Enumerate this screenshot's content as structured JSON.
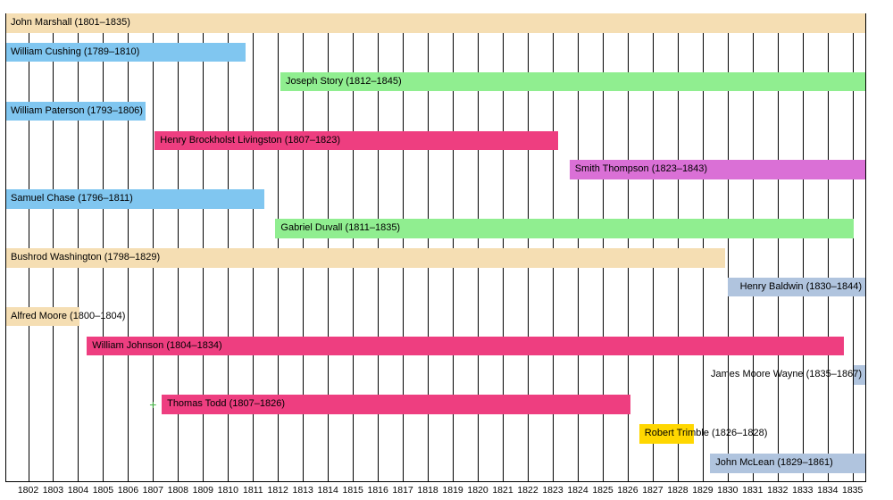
{
  "chart_data": {
    "type": "bar",
    "subtype": "horizontal-timeline-gantt",
    "title": "",
    "xlabel": "",
    "ylabel": "",
    "grid": true,
    "legend": false,
    "x_axis": {
      "visible_min": 1801.09,
      "visible_max": 1835.51,
      "tick_labels": [
        "1802",
        "1803",
        "1804",
        "1805",
        "1806",
        "1807",
        "1808",
        "1809",
        "1810",
        "1811",
        "1812",
        "1813",
        "1814",
        "1815",
        "1816",
        "1817",
        "1818",
        "1819",
        "1820",
        "1821",
        "1822",
        "1823",
        "1824",
        "1825",
        "1826",
        "1827",
        "1828",
        "1829",
        "1830",
        "1831",
        "1832",
        "1833",
        "1834",
        "1835"
      ]
    },
    "palette": {
      "wheat": "#f5deb3",
      "sky_blue": "#80c6f0",
      "light_green": "#90ee90",
      "pink": "#ee3e80",
      "orchid": "#da70d6",
      "gold": "#ffd700",
      "light_steel_blue": "#b0c4de",
      "marker_green": "#44b844",
      "grid_black": "#000000"
    },
    "justices": [
      {
        "id": "john-marshall",
        "label": "John Marshall (1801–1835)",
        "term_start": 1801,
        "term_end": 1835,
        "bar_start": 1801.09,
        "bar_end": 1835.51,
        "color": "#f5deb3",
        "label_align": "left"
      },
      {
        "id": "william-cushing",
        "label": "William Cushing (1789–1810)",
        "term_start": 1789,
        "term_end": 1810,
        "bar_start": 1789.0,
        "bar_end": 1810.7,
        "color": "#80c6f0",
        "label_align": "left"
      },
      {
        "id": "joseph-story",
        "label": "Joseph Story (1812–1845)",
        "term_start": 1812,
        "term_end": 1845,
        "bar_start": 1812.1,
        "bar_end": 1845.0,
        "color": "#90ee90",
        "label_align": "left"
      },
      {
        "id": "william-paterson",
        "label": "William Paterson (1793–1806)",
        "term_start": 1793,
        "term_end": 1806,
        "bar_start": 1793.0,
        "bar_end": 1806.69,
        "color": "#80c6f0",
        "label_align": "left"
      },
      {
        "id": "henry-brockholst-livingston",
        "label": "Henry Brockholst Livingston (1807–1823)",
        "term_start": 1807,
        "term_end": 1823,
        "bar_start": 1807.07,
        "bar_end": 1823.21,
        "color": "#ee3e80",
        "label_align": "left"
      },
      {
        "id": "smith-thompson",
        "label": "Smith Thompson (1823–1843)",
        "term_start": 1823,
        "term_end": 1843,
        "bar_start": 1823.67,
        "bar_end": 1843.96,
        "color": "#da70d6",
        "label_align": "left"
      },
      {
        "id": "samuel-chase",
        "label": "Samuel Chase (1796–1811)",
        "term_start": 1796,
        "term_end": 1811,
        "bar_start": 1796.0,
        "bar_end": 1811.46,
        "color": "#80c6f0",
        "label_align": "left"
      },
      {
        "id": "gabriel-duvall",
        "label": "Gabriel Duvall (1811–1835)",
        "term_start": 1811,
        "term_end": 1835,
        "bar_start": 1811.9,
        "bar_end": 1835.04,
        "color": "#90ee90",
        "label_align": "left"
      },
      {
        "id": "bushrod-washington",
        "label": "Bushrod Washington (1798–1829)",
        "term_start": 1798,
        "term_end": 1829,
        "bar_start": 1798.0,
        "bar_end": 1829.9,
        "color": "#f5deb3",
        "label_align": "left"
      },
      {
        "id": "henry-baldwin",
        "label": "Henry Baldwin (1830–1844)",
        "term_start": 1830,
        "term_end": 1844,
        "bar_start": 1830.02,
        "bar_end": 1844.0,
        "color": "#b0c4de",
        "label_align": "right"
      },
      {
        "id": "alfred-moore",
        "label": "Alfred Moore (1800–1804)",
        "term_start": 1800,
        "term_end": 1804,
        "bar_start": 1800.0,
        "bar_end": 1804.07,
        "color": "#f5deb3",
        "label_align": "left"
      },
      {
        "id": "william-johnson",
        "label": "William Johnson (1804–1834)",
        "term_start": 1804,
        "term_end": 1834,
        "bar_start": 1804.35,
        "bar_end": 1834.65,
        "color": "#ee3e80",
        "label_align": "left"
      },
      {
        "id": "james-moore-wayne",
        "label": "James Moore Wayne (1835–1867)",
        "term_start": 1835,
        "term_end": 1867,
        "bar_start": 1835.04,
        "bar_end": 1867.0,
        "color": "#b0c4de",
        "label_align": "right"
      },
      {
        "id": "thomas-todd",
        "label": "Thomas Todd (1807–1826)",
        "term_start": 1807,
        "term_end": 1826,
        "bar_start": 1807.35,
        "bar_end": 1826.1,
        "color": "#ee3e80",
        "label_align": "left",
        "marker": {
          "glyph": "+",
          "year": 1807.0,
          "color": "#44b844"
        }
      },
      {
        "id": "robert-trimble",
        "label": "Robert Trimble (1826–1828)",
        "term_start": 1826,
        "term_end": 1828,
        "bar_start": 1826.46,
        "bar_end": 1828.65,
        "color": "#ffd700",
        "label_align": "left"
      },
      {
        "id": "john-mclean",
        "label": "John McLean (1829–1861)",
        "term_start": 1829,
        "term_end": 1861,
        "bar_start": 1829.3,
        "bar_end": 1861.0,
        "color": "#b0c4de",
        "label_align": "left"
      }
    ]
  }
}
